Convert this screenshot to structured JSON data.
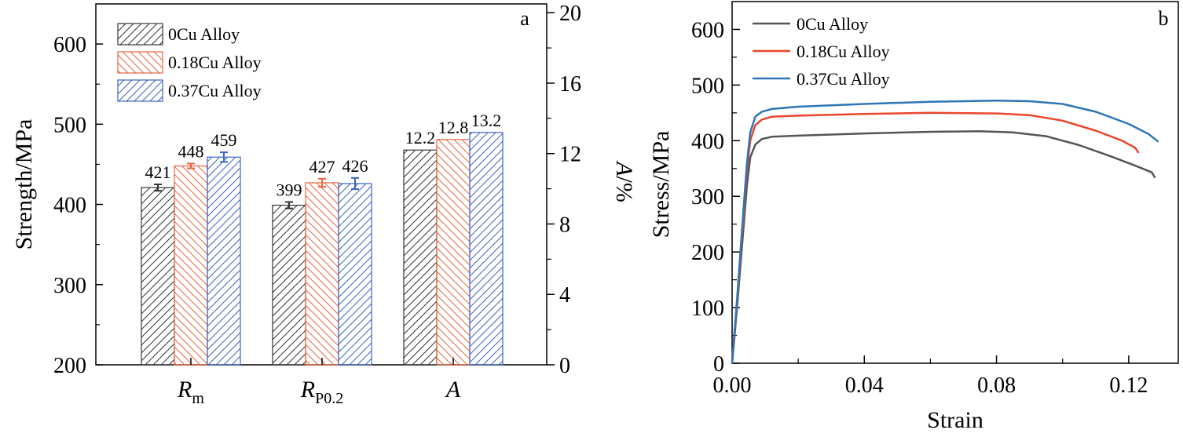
{
  "chart_data": [
    {
      "panel_label": "a",
      "type": "bar",
      "categories": [
        "R",
        "R",
        "A"
      ],
      "category_subscripts": [
        "m",
        "P0.2",
        ""
      ],
      "category_axis": [
        "left",
        "left",
        "right"
      ],
      "series": [
        {
          "name": "0Cu Alloy",
          "color": "#333333",
          "hatch": "diagonal-up",
          "values": [
            421,
            399,
            12.2
          ],
          "errors": [
            4,
            4,
            0
          ]
        },
        {
          "name": "0.18Cu Alloy",
          "color": "#e8643c",
          "hatch": "diagonal-down",
          "values": [
            448,
            427,
            12.8
          ],
          "errors": [
            3,
            5,
            0
          ]
        },
        {
          "name": "0.37Cu Alloy",
          "color": "#3a64c0",
          "hatch": "diagonal-up",
          "values": [
            459,
            426,
            13.2
          ],
          "errors": [
            6,
            7,
            0
          ]
        }
      ],
      "data_labels": [
        [
          "421",
          "399",
          "12.2"
        ],
        [
          "448",
          "427",
          "12.8"
        ],
        [
          "459",
          "426",
          "13.2"
        ]
      ],
      "ylabel": "Strength/MPa",
      "ylim": [
        200,
        650
      ],
      "yticks": [
        "200",
        "300",
        "400",
        "500",
        "600"
      ],
      "y2label_italic": "A",
      "y2label_rest": "/%",
      "y2lim": [
        0,
        20.5
      ],
      "y2ticks": [
        "0",
        "4",
        "8",
        "12",
        "16",
        "20"
      ],
      "legend_position": "top-left",
      "grid": false
    },
    {
      "panel_label": "b",
      "type": "line",
      "xlabel": "Strain",
      "ylabel": "Stress/MPa",
      "xlim": [
        0,
        0.135
      ],
      "ylim": [
        0,
        650
      ],
      "xticks": [
        "0.00",
        "0.04",
        "0.08",
        "0.12"
      ],
      "yticks": [
        "0",
        "100",
        "200",
        "300",
        "400",
        "500",
        "600"
      ],
      "legend_position": "top-left",
      "grid": false,
      "series": [
        {
          "name": "0Cu Alloy",
          "color": "#555555",
          "points": [
            [
              0,
              0
            ],
            [
              0.0015,
              100
            ],
            [
              0.003,
              210
            ],
            [
              0.0045,
              320
            ],
            [
              0.0055,
              370
            ],
            [
              0.007,
              393
            ],
            [
              0.009,
              403
            ],
            [
              0.012,
              407
            ],
            [
              0.02,
              409
            ],
            [
              0.04,
              413
            ],
            [
              0.06,
              416
            ],
            [
              0.075,
              417
            ],
            [
              0.085,
              415
            ],
            [
              0.095,
              408
            ],
            [
              0.105,
              392
            ],
            [
              0.115,
              371
            ],
            [
              0.122,
              355
            ],
            [
              0.127,
              343
            ],
            [
              0.128,
              333
            ]
          ]
        },
        {
          "name": "0.18Cu Alloy",
          "color": "#e8452c",
          "points": [
            [
              0,
              0
            ],
            [
              0.0015,
              110
            ],
            [
              0.003,
              230
            ],
            [
              0.0045,
              350
            ],
            [
              0.0055,
              400
            ],
            [
              0.007,
              428
            ],
            [
              0.009,
              438
            ],
            [
              0.012,
              443
            ],
            [
              0.02,
              445
            ],
            [
              0.04,
              448
            ],
            [
              0.06,
              450
            ],
            [
              0.08,
              449
            ],
            [
              0.09,
              446
            ],
            [
              0.1,
              436
            ],
            [
              0.11,
              418
            ],
            [
              0.118,
              400
            ],
            [
              0.122,
              387
            ],
            [
              0.123,
              378
            ]
          ]
        },
        {
          "name": "0.37Cu Alloy",
          "color": "#2e75b6",
          "points": [
            [
              0,
              0
            ],
            [
              0.0015,
              115
            ],
            [
              0.003,
              240
            ],
            [
              0.0045,
              360
            ],
            [
              0.0055,
              415
            ],
            [
              0.007,
              443
            ],
            [
              0.009,
              452
            ],
            [
              0.012,
              457
            ],
            [
              0.02,
              461
            ],
            [
              0.04,
              466
            ],
            [
              0.06,
              470
            ],
            [
              0.08,
              472
            ],
            [
              0.09,
              471
            ],
            [
              0.1,
              466
            ],
            [
              0.11,
              452
            ],
            [
              0.12,
              430
            ],
            [
              0.126,
              412
            ],
            [
              0.129,
              398
            ]
          ]
        }
      ]
    }
  ]
}
